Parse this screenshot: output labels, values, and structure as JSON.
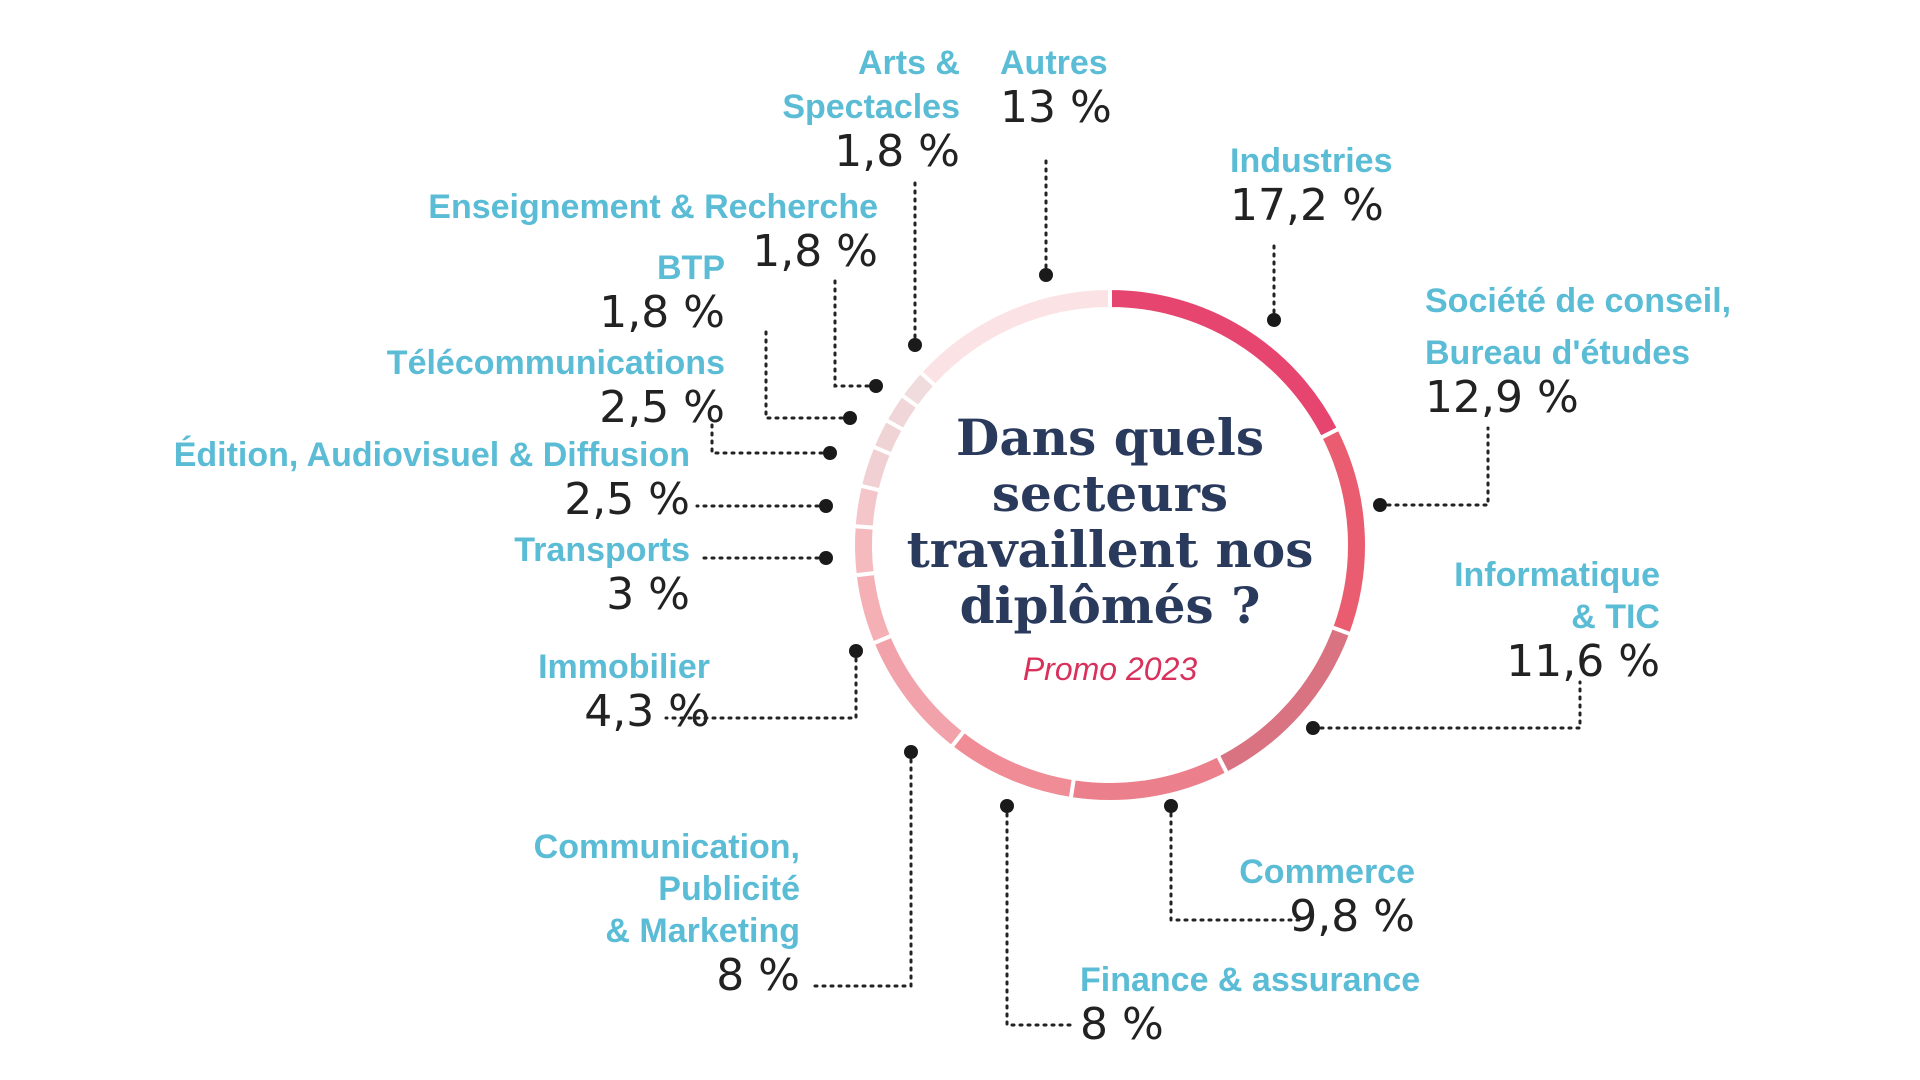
{
  "center": {
    "title_lines": [
      "Dans quels",
      "secteurs",
      "travaillent nos",
      "diplômés ?"
    ],
    "subtitle": "Promo 2023"
  },
  "chart_data": {
    "type": "pie",
    "title": "Dans quels secteurs travaillent nos diplômés ?",
    "subtitle": "Promo 2023",
    "slices": [
      {
        "name": "Industries",
        "display": "17,2 %",
        "value": 17.2,
        "color": "#e6456f"
      },
      {
        "name": "Société de conseil, Bureau d'études",
        "display": "12,9 %",
        "value": 12.9,
        "color": "#ea5d70"
      },
      {
        "name": "Informatique & TIC",
        "display": "11,6 %",
        "value": 11.6,
        "color": "#d97382"
      },
      {
        "name": "Commerce",
        "display": "9,8 %",
        "value": 9.8,
        "color": "#ec7f8c"
      },
      {
        "name": "Finance & assurance",
        "display": "8 %",
        "value": 8,
        "color": "#f08c96"
      },
      {
        "name": "Communication, Publicité & Marketing",
        "display": "8 %",
        "value": 8,
        "color": "#f2a2aa"
      },
      {
        "name": "Immobilier",
        "display": "4,3 %",
        "value": 4.3,
        "color": "#f5b0b6"
      },
      {
        "name": "Transports",
        "display": "3 %",
        "value": 3,
        "color": "#f5babe"
      },
      {
        "name": "Édition, Audiovisuel & Diffusion",
        "display": "2,5 %",
        "value": 2.5,
        "color": "#f5c6c9"
      },
      {
        "name": "Télécommunications",
        "display": "2,5 %",
        "value": 2.5,
        "color": "#f0d0d2"
      },
      {
        "name": "BTP",
        "display": "1,8 %",
        "value": 1.8,
        "color": "#f0d3d5"
      },
      {
        "name": "Enseignement & Recherche",
        "display": "1,8 %",
        "value": 1.8,
        "color": "#f0d6d8"
      },
      {
        "name": "Arts & Spectacles",
        "display": "1,8 %",
        "value": 1.8,
        "color": "#f0dbdd"
      },
      {
        "name": "Autres",
        "display": "13 %",
        "value": 13,
        "color": "#fbe3e5"
      }
    ]
  },
  "labels": [
    {
      "lines": [
        "Industries"
      ],
      "value": "17,2 %"
    },
    {
      "lines": [
        "Société de conseil,",
        "Bureau d'études"
      ],
      "value": "12,9 %"
    },
    {
      "lines": [
        "Informatique",
        "& TIC"
      ],
      "value": "11,6 %"
    },
    {
      "lines": [
        "Commerce"
      ],
      "value": "9,8 %"
    },
    {
      "lines": [
        "Finance & assurance"
      ],
      "value": "8 %"
    },
    {
      "lines": [
        "Communication,",
        "Publicité",
        "& Marketing"
      ],
      "value": "8 %"
    },
    {
      "lines": [
        "Immobilier"
      ],
      "value": "4,3 %"
    },
    {
      "lines": [
        "Transports"
      ],
      "value": "3 %"
    },
    {
      "lines": [
        "Édition, Audiovisuel & Diffusion"
      ],
      "value": "2,5 %"
    },
    {
      "lines": [
        "Télécommunications"
      ],
      "value": "2,5 %"
    },
    {
      "lines": [
        "BTP"
      ],
      "value": "1,8 %"
    },
    {
      "lines": [
        "Enseignement & Recherche"
      ],
      "value": "1,8 %"
    },
    {
      "lines": [
        "Arts &",
        "Spectacles"
      ],
      "value": "1,8 %"
    },
    {
      "lines": [
        "Autres"
      ],
      "value": "13 %"
    }
  ]
}
